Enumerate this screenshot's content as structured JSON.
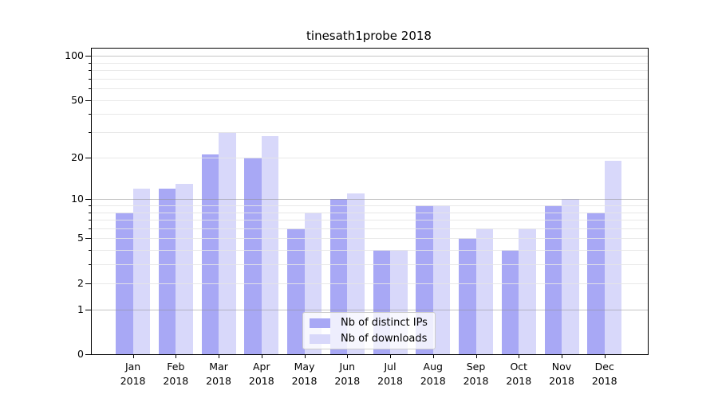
{
  "chart_data": {
    "type": "bar",
    "title": "tinesath1probe 2018",
    "categories": [
      "Jan",
      "Feb",
      "Mar",
      "Apr",
      "May",
      "Jun",
      "Jul",
      "Aug",
      "Sep",
      "Oct",
      "Nov",
      "Dec"
    ],
    "x_year_label": "2018",
    "series": [
      {
        "name": "Nb of distinct IPs",
        "color": "#a8a8f5",
        "values": [
          8,
          12,
          21,
          20,
          6,
          10,
          4,
          9,
          5,
          4,
          9,
          8
        ]
      },
      {
        "name": "Nb of downloads",
        "color": "#d8d8fa",
        "values": [
          12,
          13,
          30,
          28,
          8,
          11,
          4,
          9,
          6,
          6,
          10,
          19
        ]
      }
    ],
    "y_axis": {
      "scale": "log1p",
      "tick_labels": [
        "0",
        "1",
        "2",
        "5",
        "10",
        "20",
        "50",
        "100"
      ],
      "ticks": [
        0,
        1,
        2,
        5,
        10,
        20,
        50,
        100
      ],
      "decade_ticks": [
        1,
        10,
        100
      ],
      "minor_ticks": [
        3,
        4,
        6,
        7,
        8,
        9,
        30,
        40,
        60,
        70,
        80,
        90
      ],
      "top_value": 112
    },
    "grid": true,
    "legend_position": "lower center",
    "colors": {
      "grid_decade": "rgba(140,140,140,0.5)",
      "grid_minor": "rgba(230,230,230,0.9)",
      "frame": "#000000"
    }
  }
}
